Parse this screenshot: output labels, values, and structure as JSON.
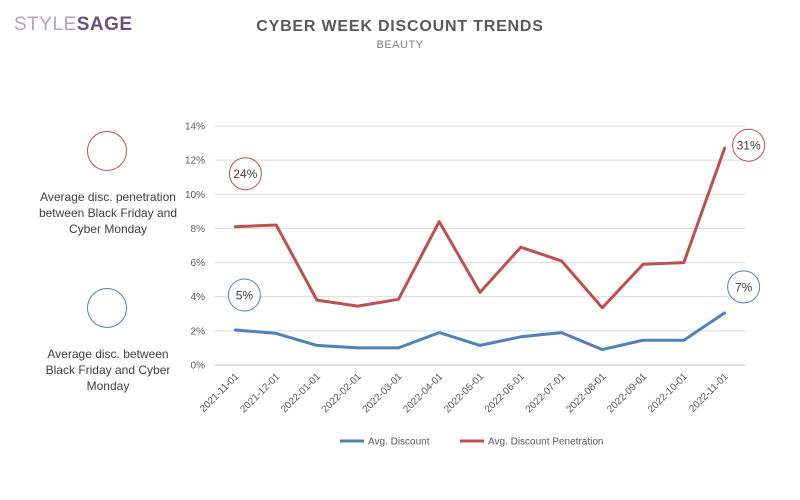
{
  "brand": {
    "part1": "STYLE",
    "part2": "SAGE"
  },
  "header": {
    "title": "CYBER WEEK DISCOUNT TRENDS",
    "subtitle": "BEAUTY"
  },
  "side_notes": {
    "penetration": "Average disc. penetration between Black Friday and Cyber Monday",
    "discount": "Average disc. between Black Friday and Cyber Monday"
  },
  "colors": {
    "discount": "#4f81bd",
    "penetration": "#c0504d",
    "grid": "#d9d9d9",
    "axis": "#bfbfbf"
  },
  "chart_data": {
    "type": "line",
    "title": "CYBER WEEK DISCOUNT TRENDS",
    "subtitle": "BEAUTY",
    "categories": [
      "2021-11-01",
      "2021-12-01",
      "2022-01-01",
      "2022-02-01",
      "2022-03-01",
      "2022-04-01",
      "2022-05-01",
      "2022-06-01",
      "2022-07-01",
      "2022-08-01",
      "2022-09-01",
      "2022-10-01",
      "2022-11-01"
    ],
    "ylim": [
      0,
      14
    ],
    "yticks": [
      "0%",
      "2%",
      "4%",
      "6%",
      "8%",
      "10%",
      "12%",
      "14%"
    ],
    "series": [
      {
        "name": "Avg. Discount",
        "color": "#4f81bd",
        "values": [
          2.05,
          1.85,
          1.15,
          1.0,
          1.0,
          1.9,
          1.15,
          1.65,
          1.9,
          0.9,
          1.45,
          1.45,
          3.05
        ]
      },
      {
        "name": "Avg. Discount Penetration",
        "color": "#c0504d",
        "values": [
          8.1,
          8.2,
          3.8,
          3.45,
          3.85,
          8.4,
          4.25,
          6.9,
          6.1,
          3.35,
          5.9,
          6.0,
          12.7
        ]
      }
    ],
    "callouts": [
      {
        "text": "24%",
        "series": "Avg. Discount Penetration",
        "at": "2021-11-01"
      },
      {
        "text": "31%",
        "series": "Avg. Discount Penetration",
        "at": "2022-11-01"
      },
      {
        "text": "5%",
        "series": "Avg. Discount",
        "at": "2021-11-01"
      },
      {
        "text": "7%",
        "series": "Avg. Discount",
        "at": "2022-11-01"
      }
    ],
    "grid": true,
    "legend": "bottom"
  }
}
